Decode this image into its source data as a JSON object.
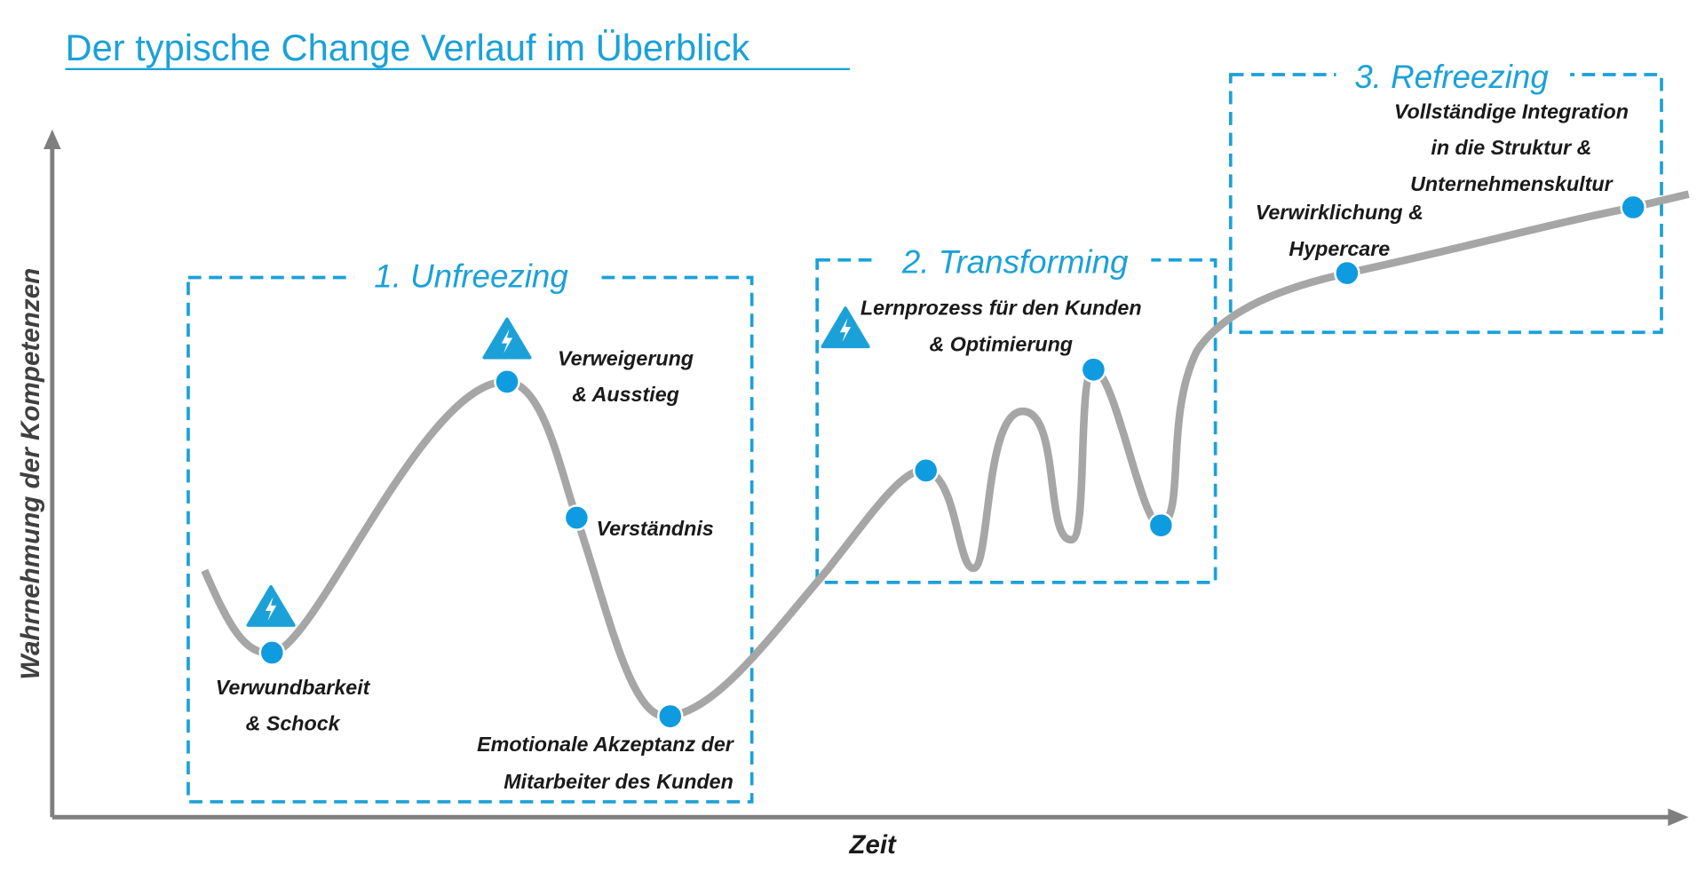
{
  "header": {
    "title": "Der typische Change Verlauf im Überblick"
  },
  "axes": {
    "y_label": "Wahrnehmung der Kompetenzen",
    "x_label": "Zeit"
  },
  "phases": [
    {
      "title": "1. Unfreezing"
    },
    {
      "title": "2. Transforming"
    },
    {
      "title": "3. Refreezing"
    }
  ],
  "stages": [
    {
      "lines": [
        "Verwundbarkeit",
        "& Schock"
      ]
    },
    {
      "lines": [
        "Verweigerung",
        "& Ausstieg"
      ]
    },
    {
      "lines": [
        "Verständnis"
      ]
    },
    {
      "lines": [
        "Emotionale Akzeptanz der",
        "Mitarbeiter des Kunden"
      ]
    },
    {
      "lines": [
        "Lernprozess für den Kunden",
        "& Optimierung"
      ]
    },
    {
      "lines": [
        "Verwirklichung &",
        "Hypercare"
      ]
    },
    {
      "lines": [
        "Vollständige Integration",
        "in die Struktur &",
        "Unternehmenskultur"
      ]
    }
  ]
}
